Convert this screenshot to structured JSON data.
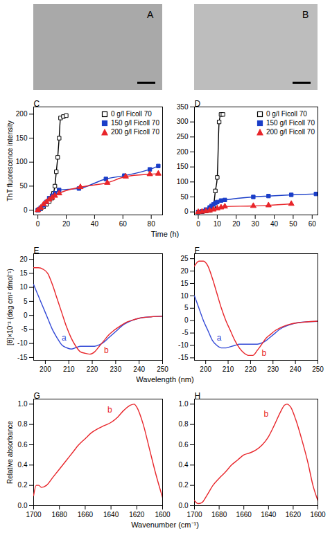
{
  "chart_data": [
    {
      "type": "image",
      "panel_label": "A"
    },
    {
      "type": "image",
      "panel_label": "B"
    },
    {
      "type": "scatter",
      "panel_label": "C",
      "ylabel": "ThT fluorescence intensity",
      "xlabel": "Time (h)",
      "xlim": [
        -3,
        88
      ],
      "xticks": [
        0,
        20,
        40,
        60,
        80
      ],
      "ylim": [
        -10,
        215
      ],
      "yticks": [
        0,
        50,
        100,
        150,
        200
      ],
      "legend": "upper right",
      "series": [
        {
          "name": "0 g/l Ficoll 70",
          "color": "#000000",
          "marker": "open-square",
          "line_style": "solid",
          "x": [
            0,
            2,
            4,
            6,
            8,
            10,
            11,
            12,
            13,
            14,
            15,
            16,
            18,
            20
          ],
          "values": [
            0,
            3,
            7,
            12,
            18,
            25,
            35,
            50,
            80,
            110,
            150,
            192,
            195,
            197
          ]
        },
        {
          "name": "150 g/l Ficoll 70",
          "color": "#1a3ec8",
          "marker": "square",
          "line_style": "solid",
          "x": [
            0,
            1,
            2,
            4,
            6,
            8,
            10,
            12,
            15,
            29,
            48,
            61,
            79,
            85
          ],
          "values": [
            0,
            2,
            5,
            10,
            17,
            25,
            30,
            35,
            42,
            45,
            65,
            72,
            85,
            92
          ]
        },
        {
          "name": "200 g/l Ficoll 70",
          "color": "#e8252a",
          "marker": "triangle",
          "line_style": "solid",
          "x": [
            0,
            2,
            4,
            6,
            8,
            10,
            12,
            15,
            30,
            49,
            62,
            79,
            85
          ],
          "values": [
            0,
            5,
            12,
            17,
            22,
            26,
            30,
            35,
            48,
            57,
            70,
            75,
            76
          ]
        }
      ]
    },
    {
      "type": "scatter",
      "panel_label": "D",
      "xlim": [
        -2,
        63
      ],
      "xticks": [
        0,
        10,
        20,
        30,
        40,
        50,
        60
      ],
      "ylim": [
        -10,
        350
      ],
      "yticks": [
        0,
        50,
        100,
        150,
        200,
        250,
        300,
        350
      ],
      "legend": "upper right",
      "series": [
        {
          "name": "0 g/l Ficoll 70",
          "color": "#000000",
          "marker": "open-square",
          "line_style": "solid",
          "x": [
            0,
            2,
            4,
            6,
            8,
            9,
            10,
            11,
            12,
            13
          ],
          "values": [
            0,
            1,
            3,
            5,
            20,
            70,
            115,
            300,
            325,
            325
          ]
        },
        {
          "name": "150 g/l Ficoll 70",
          "color": "#1a3ec8",
          "marker": "square",
          "line_style": "solid",
          "x": [
            0,
            2,
            4,
            6,
            7,
            8,
            9,
            10,
            12,
            14,
            29,
            37,
            49,
            62
          ],
          "values": [
            0,
            2,
            8,
            15,
            20,
            25,
            30,
            33,
            38,
            40,
            50,
            53,
            57,
            60
          ]
        },
        {
          "name": "200 g/l Ficoll 70",
          "color": "#e8252a",
          "marker": "triangle",
          "line_style": "solid",
          "x": [
            0,
            2,
            4,
            6,
            8,
            10,
            12,
            14,
            29,
            37,
            49
          ],
          "values": [
            0,
            1,
            3,
            5,
            8,
            12,
            15,
            18,
            20,
            22,
            27
          ]
        }
      ]
    },
    {
      "type": "line",
      "panel_label": "E",
      "ylabel": "[θ]×10⁻³ (deg cm² dmol⁻¹)",
      "xlabel": "Wavelength (nm)",
      "xlim": [
        195,
        250
      ],
      "xticks": [
        200,
        210,
        220,
        230,
        240,
        250
      ],
      "ylim": [
        -16,
        22
      ],
      "yticks": [
        -15,
        -10,
        -5,
        0,
        5,
        10,
        15,
        20
      ],
      "series": [
        {
          "color": "#3349d6",
          "line_style": "solid",
          "x": [
            195,
            197,
            199,
            201,
            203,
            205,
            207,
            209,
            211,
            213,
            215,
            217,
            219,
            221,
            223,
            225,
            227,
            229,
            231,
            233,
            235,
            237,
            240,
            245,
            250
          ],
          "values": [
            11,
            7,
            3,
            -1,
            -5,
            -8,
            -10.5,
            -11.5,
            -12,
            -11.5,
            -11,
            -11,
            -11,
            -11,
            -10.5,
            -9.5,
            -8,
            -6.5,
            -5,
            -3.5,
            -2.5,
            -1.8,
            -1,
            -0.5,
            -0.3
          ]
        },
        {
          "color": "#e8262b",
          "line_style": "solid",
          "x": [
            195,
            197,
            199,
            201,
            203,
            205,
            207,
            209,
            211,
            213,
            215,
            217,
            219,
            221,
            223,
            225,
            227,
            229,
            231,
            233,
            235,
            237,
            240,
            245,
            250
          ],
          "values": [
            17,
            17,
            16.5,
            15,
            11,
            6,
            1,
            -4,
            -8,
            -11,
            -13,
            -13.5,
            -13.8,
            -13,
            -11,
            -9,
            -7,
            -5.5,
            -4.3,
            -3.2,
            -2.3,
            -1.7,
            -1,
            -0.5,
            -0.3
          ]
        }
      ],
      "annotations": [
        {
          "text": "a",
          "x": 208,
          "y": -8,
          "color": "#3349d6"
        },
        {
          "text": "b",
          "x": 226,
          "y": -12.5,
          "color": "#e8262b"
        }
      ]
    },
    {
      "type": "line",
      "panel_label": "F",
      "xlim": [
        195,
        250
      ],
      "xticks": [
        200,
        210,
        220,
        230,
        240,
        250
      ],
      "ylim": [
        -16,
        27
      ],
      "yticks": [
        -15,
        -10,
        -5,
        0,
        5,
        10,
        15,
        20,
        25
      ],
      "series": [
        {
          "color": "#3349d6",
          "line_style": "solid",
          "x": [
            195,
            197,
            199,
            201,
            203,
            205,
            207,
            209,
            211,
            213,
            215,
            217,
            219,
            221,
            223,
            225,
            227,
            229,
            231,
            233,
            235,
            237,
            240,
            245,
            250
          ],
          "values": [
            10,
            5,
            0,
            -4,
            -8,
            -10,
            -11,
            -11,
            -10.5,
            -10,
            -9.5,
            -9.5,
            -9.5,
            -9.5,
            -9.5,
            -9,
            -8,
            -6.5,
            -5,
            -3.5,
            -2.5,
            -1.8,
            -1,
            -0.5,
            -0.3
          ]
        },
        {
          "color": "#e8262b",
          "line_style": "solid",
          "x": [
            195,
            197,
            199,
            201,
            203,
            205,
            207,
            209,
            211,
            213,
            215,
            217,
            219,
            221,
            223,
            225,
            227,
            229,
            231,
            233,
            235,
            237,
            240,
            245,
            250
          ],
          "values": [
            22,
            24,
            24,
            22,
            17,
            11,
            5,
            0,
            -4,
            -8,
            -11,
            -13,
            -14,
            -14,
            -12,
            -9.5,
            -7,
            -5.5,
            -4,
            -3,
            -2.2,
            -1.6,
            -1,
            -0.5,
            -0.2
          ]
        }
      ],
      "annotations": [
        {
          "text": "a",
          "x": 206,
          "y": -7,
          "color": "#3349d6"
        },
        {
          "text": "b",
          "x": 226,
          "y": -13,
          "color": "#e8262b"
        }
      ]
    },
    {
      "type": "line",
      "panel_label": "G",
      "ylabel": "Relative absorbance",
      "xlabel": "Wavenumber (cm⁻¹)",
      "xlim": [
        1700,
        1600
      ],
      "xticks": [
        1700,
        1680,
        1660,
        1640,
        1620,
        1600
      ],
      "ylim": [
        0,
        1.05
      ],
      "yticks": [
        {
          "value": 0,
          "label": "0.0"
        },
        0.2,
        0.4,
        0.6,
        0.8,
        {
          "value": 1,
          "label": "1.0"
        }
      ],
      "series": [
        {
          "color": "#e8262b",
          "line_style": "solid",
          "x": [
            1700,
            1698,
            1696,
            1694,
            1690,
            1685,
            1680,
            1675,
            1670,
            1665,
            1660,
            1655,
            1650,
            1645,
            1640,
            1635,
            1630,
            1625,
            1622,
            1620,
            1615,
            1610,
            1605,
            1600
          ],
          "values": [
            0.1,
            0.2,
            0.2,
            0.18,
            0.2,
            0.28,
            0.36,
            0.44,
            0.52,
            0.6,
            0.66,
            0.72,
            0.76,
            0.79,
            0.82,
            0.87,
            0.94,
            0.99,
            1.0,
            0.97,
            0.8,
            0.55,
            0.3,
            0.08
          ]
        }
      ],
      "annotations": [
        {
          "text": "b",
          "x": 1641,
          "y": 0.94,
          "color": "#e8262b"
        }
      ]
    },
    {
      "type": "line",
      "panel_label": "H",
      "xlim": [
        1700,
        1600
      ],
      "xticks": [
        1700,
        1680,
        1660,
        1640,
        1620,
        1600
      ],
      "ylim": [
        0,
        1.05
      ],
      "yticks": [
        {
          "value": 0,
          "label": "0.0"
        },
        0.2,
        0.4,
        0.6,
        0.8,
        {
          "value": 1,
          "label": "1.0"
        }
      ],
      "series": [
        {
          "color": "#e8262b",
          "line_style": "solid",
          "x": [
            1700,
            1697,
            1694,
            1690,
            1685,
            1680,
            1675,
            1670,
            1665,
            1660,
            1655,
            1650,
            1645,
            1640,
            1635,
            1630,
            1627,
            1625,
            1622,
            1618,
            1613,
            1608,
            1604,
            1600
          ],
          "values": [
            0.05,
            0.02,
            0.03,
            0.1,
            0.2,
            0.27,
            0.33,
            0.4,
            0.45,
            0.5,
            0.52,
            0.55,
            0.6,
            0.68,
            0.8,
            0.93,
            0.99,
            1.0,
            0.97,
            0.85,
            0.65,
            0.42,
            0.2,
            0.05
          ]
        }
      ],
      "annotations": [
        {
          "text": "b",
          "x": 1642,
          "y": 0.9,
          "color": "#e8262b"
        }
      ]
    }
  ]
}
